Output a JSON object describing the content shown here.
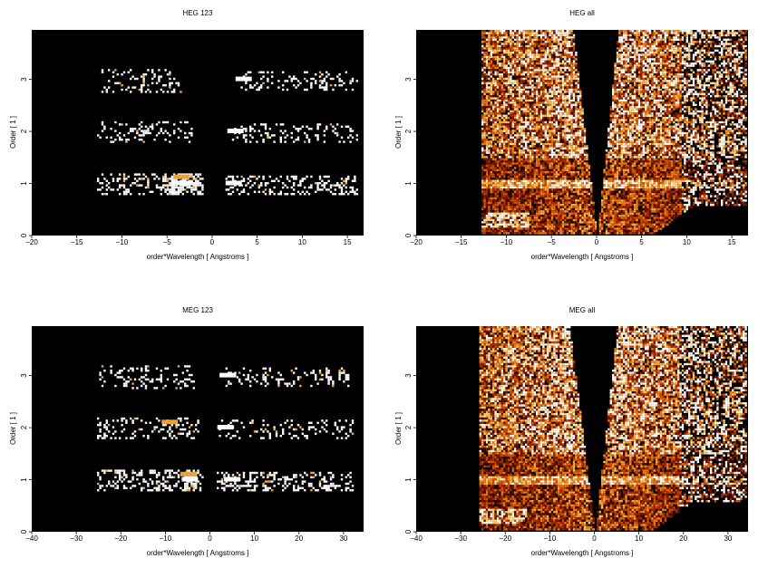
{
  "chart_data": [
    {
      "type": "heatmap",
      "title": "HEG 123",
      "xlabel": "order*Wavelength [ Angstroms ]",
      "ylabel": "Order [ 1 ]",
      "xlim": [
        -20,
        16.8
      ],
      "ylim": [
        0,
        3.95
      ],
      "xticks": [
        -20,
        -15,
        -10,
        -5,
        0,
        5,
        10,
        15
      ],
      "yticks": [
        0,
        1,
        2,
        3
      ],
      "mode": "orders",
      "bands": [
        {
          "order": 3,
          "x_min": -12.5,
          "x_max": 16,
          "gap": [
            -3.5,
            3
          ]
        },
        {
          "order": 2,
          "x_min": -12.8,
          "x_max": 16,
          "gap": [
            -2.3,
            2
          ]
        },
        {
          "order": 1,
          "x_min": -12.8,
          "x_max": 16,
          "gap": [
            -1,
            1.4
          ]
        }
      ],
      "hotspots": [
        {
          "x": -3,
          "y": 1,
          "level": "white"
        },
        {
          "x": -3.4,
          "y": 1.12,
          "level": "orange"
        },
        {
          "x": 2.4,
          "y": 1,
          "level": "white"
        },
        {
          "x": 2.6,
          "y": 2,
          "level": "white"
        },
        {
          "x": 3.5,
          "y": 3,
          "level": "white"
        }
      ]
    },
    {
      "type": "heatmap",
      "title": "HEG all",
      "xlabel": "order*Wavelength [ Angstroms ]",
      "ylabel": "Order [ 1 ]",
      "xlim": [
        -20,
        16.8
      ],
      "ylim": [
        0,
        3.95
      ],
      "xticks": [
        -20,
        -15,
        -10,
        -5,
        0,
        5,
        10,
        15
      ],
      "yticks": [
        0,
        1,
        2,
        3
      ],
      "mode": "all",
      "data_x_range": [
        -13,
        16.8
      ],
      "wedge_slope": 0.42,
      "first_order_line": 1,
      "second_order_boundary": 1.5
    },
    {
      "type": "heatmap",
      "title": "MEG 123",
      "xlabel": "order*Wavelength [ Angstroms ]",
      "ylabel": "Order [ 1 ]",
      "xlim": [
        -40,
        34.5
      ],
      "ylim": [
        0,
        3.95
      ],
      "xticks": [
        -40,
        -30,
        -20,
        -10,
        0,
        10,
        20,
        30
      ],
      "yticks": [
        0,
        1,
        2,
        3
      ],
      "mode": "orders",
      "bands": [
        {
          "order": 3,
          "x_min": -25,
          "x_max": 32,
          "gap": [
            -3.5,
            3
          ]
        },
        {
          "order": 2,
          "x_min": -25.5,
          "x_max": 32,
          "gap": [
            -2.5,
            2
          ]
        },
        {
          "order": 1,
          "x_min": -25.5,
          "x_max": 32,
          "gap": [
            -1.5,
            1.5
          ]
        }
      ],
      "hotspots": [
        {
          "x": -4.5,
          "y": 1,
          "level": "white"
        },
        {
          "x": -4.8,
          "y": 1.1,
          "level": "orange"
        },
        {
          "x": 5,
          "y": 1,
          "level": "white"
        },
        {
          "x": 3.5,
          "y": 2,
          "level": "white"
        },
        {
          "x": 4,
          "y": 3,
          "level": "white"
        },
        {
          "x": -9,
          "y": 2.1,
          "level": "orange"
        }
      ]
    },
    {
      "type": "heatmap",
      "title": "MEG all",
      "xlabel": "order*Wavelength [ Angstroms ]",
      "ylabel": "Order [ 1 ]",
      "xlim": [
        -40,
        34.5
      ],
      "ylim": [
        0,
        3.95
      ],
      "xticks": [
        -40,
        -30,
        -20,
        -10,
        0,
        10,
        20,
        30
      ],
      "yticks": [
        0,
        1,
        2,
        3
      ],
      "mode": "all",
      "data_x_range": [
        -26,
        34.5
      ],
      "wedge_slope": 0.9,
      "first_order_line": 1,
      "second_order_boundary": 1.5
    }
  ]
}
